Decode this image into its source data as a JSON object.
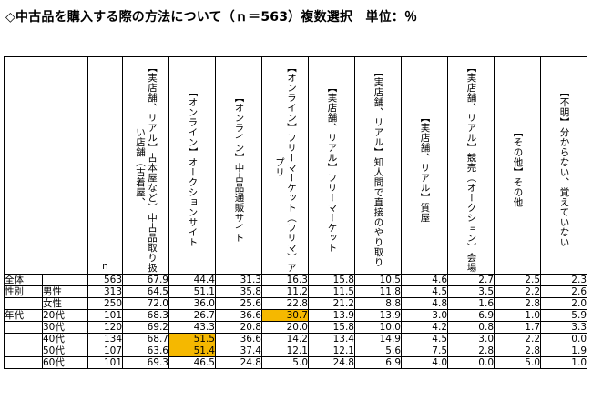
{
  "title": "◇中古品を購入する際の方法について（ｎ＝563）複数選択　単位：％",
  "n_label": "n",
  "highlight_color": "#f5b800",
  "columns": [
    "【実店舗、リアル】古本屋など）中古品取り扱い店舗（古着屋、",
    "【オンライン】オークションサイト",
    "【オンライン】中古品通販サイト",
    "【オンライン】フリーマーケット（フリマ）アプリ",
    "【実店舗、リアル】フリーマーケット",
    "【実店舗、リアル】知人間で直接のやり取り",
    "【実店舗、リアル】質屋",
    "【実店舗、リアル】競売（オークション）会場",
    "【その他】その他",
    "【不明】分からない、覚えていない"
  ],
  "rows": [
    {
      "group": "全体",
      "label": "",
      "n": "563",
      "values": [
        "67.9",
        "44.4",
        "31.3",
        "16.3",
        "15.8",
        "10.5",
        "4.6",
        "2.7",
        "2.5",
        "2.3"
      ],
      "hl": []
    },
    {
      "group": "性別",
      "label": "男性",
      "n": "313",
      "values": [
        "64.5",
        "51.1",
        "35.8",
        "11.2",
        "11.5",
        "11.8",
        "4.5",
        "3.5",
        "2.2",
        "2.6"
      ],
      "hl": []
    },
    {
      "group": "",
      "label": "女性",
      "n": "250",
      "values": [
        "72.0",
        "36.0",
        "25.6",
        "22.8",
        "21.2",
        "8.8",
        "4.8",
        "1.6",
        "2.8",
        "2.0"
      ],
      "hl": []
    },
    {
      "group": "年代",
      "label": "20代",
      "n": "101",
      "values": [
        "68.3",
        "26.7",
        "36.6",
        "30.7",
        "13.9",
        "13.9",
        "3.0",
        "6.9",
        "1.0",
        "5.9"
      ],
      "hl": [
        3
      ]
    },
    {
      "group": "",
      "label": "30代",
      "n": "120",
      "values": [
        "69.2",
        "43.3",
        "20.8",
        "20.0",
        "15.8",
        "10.0",
        "4.2",
        "0.8",
        "1.7",
        "3.3"
      ],
      "hl": []
    },
    {
      "group": "",
      "label": "40代",
      "n": "134",
      "values": [
        "68.7",
        "51.5",
        "36.6",
        "14.2",
        "13.4",
        "14.9",
        "4.5",
        "3.0",
        "2.2",
        "0.0"
      ],
      "hl": [
        1
      ]
    },
    {
      "group": "",
      "label": "50代",
      "n": "107",
      "values": [
        "63.6",
        "51.4",
        "37.4",
        "12.1",
        "12.1",
        "5.6",
        "7.5",
        "2.8",
        "2.8",
        "1.9"
      ],
      "hl": [
        1
      ]
    },
    {
      "group": "",
      "label": "60代",
      "n": "101",
      "values": [
        "69.3",
        "46.5",
        "24.8",
        "5.0",
        "24.8",
        "6.9",
        "4.0",
        "0.0",
        "5.0",
        "1.0"
      ],
      "hl": []
    }
  ]
}
